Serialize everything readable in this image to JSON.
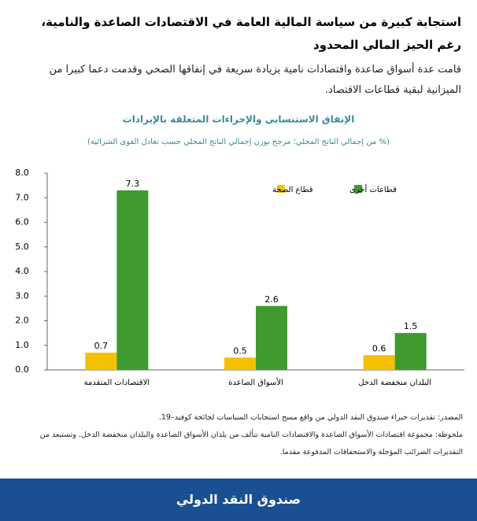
{
  "header": {
    "title": "استجابة كبيرة من سياسة المالية العامة في الاقتصادات الصاعدة والنامية، رغم الحيز المالي المحدود",
    "body": "قامت عدة أسواق صاعدة واقتصادات نامية بزيادة سريعة في إنفاقها الصحي وقدمت دعما كبيرا من الميزانية لبقية قطاعات الاقتصاد."
  },
  "chart_data": {
    "type": "bar",
    "title": "الإنفاق الاستنسابي والإجراءات المتعلقة بالإيرادات",
    "subtitle": "(% من إجمالي الناتج المحلي؛ مرجح بوزن إجمالي الناتج المحلي حسب تعادل القوى الشرائية)",
    "categories": [
      "الاقتصادات المتقدمة",
      "الأسواق الصاعدة",
      "البلدان منخفضة الدخل"
    ],
    "series": [
      {
        "name": "قطاع الصحة",
        "color": "#f5c000",
        "values": [
          0.7,
          0.5,
          0.6
        ]
      },
      {
        "name": "قطاعات أخرى",
        "color": "#3f9a2e",
        "values": [
          7.3,
          2.6,
          1.5
        ]
      }
    ],
    "ylim": [
      0,
      8
    ],
    "yticks": [
      {
        "value": 0,
        "label": "0.0"
      },
      {
        "value": 1,
        "label": "1.0"
      },
      {
        "value": 2,
        "label": "2.0"
      },
      {
        "value": 3,
        "label": "3.0"
      },
      {
        "value": 4,
        "label": "4.0"
      },
      {
        "value": 5,
        "label": "5.0"
      },
      {
        "value": 6,
        "label": "6.0"
      },
      {
        "value": 7,
        "label": "7.0"
      },
      {
        "value": 8,
        "label": "8.0"
      }
    ],
    "grid": false,
    "legend": "top-right"
  },
  "notes": {
    "source": "المصدر: تقديرات خبراء صندوق النقد الدولي من واقع مسح استجابات السياسات لجائحة كوفيد–19.",
    "note": "ملحوظة: مجموعة اقتصادات الأسواق الصاعدة والاقتصادات النامية تتألف من بلدان الأسواق الصاعدة والبلدان منخفضة الدخل. وتستبعد من التقديرات الضرائب المؤجلة والاستحقاقات المدفوعة مقدما."
  },
  "footer": {
    "label": "صندوق النقد الدولي"
  }
}
